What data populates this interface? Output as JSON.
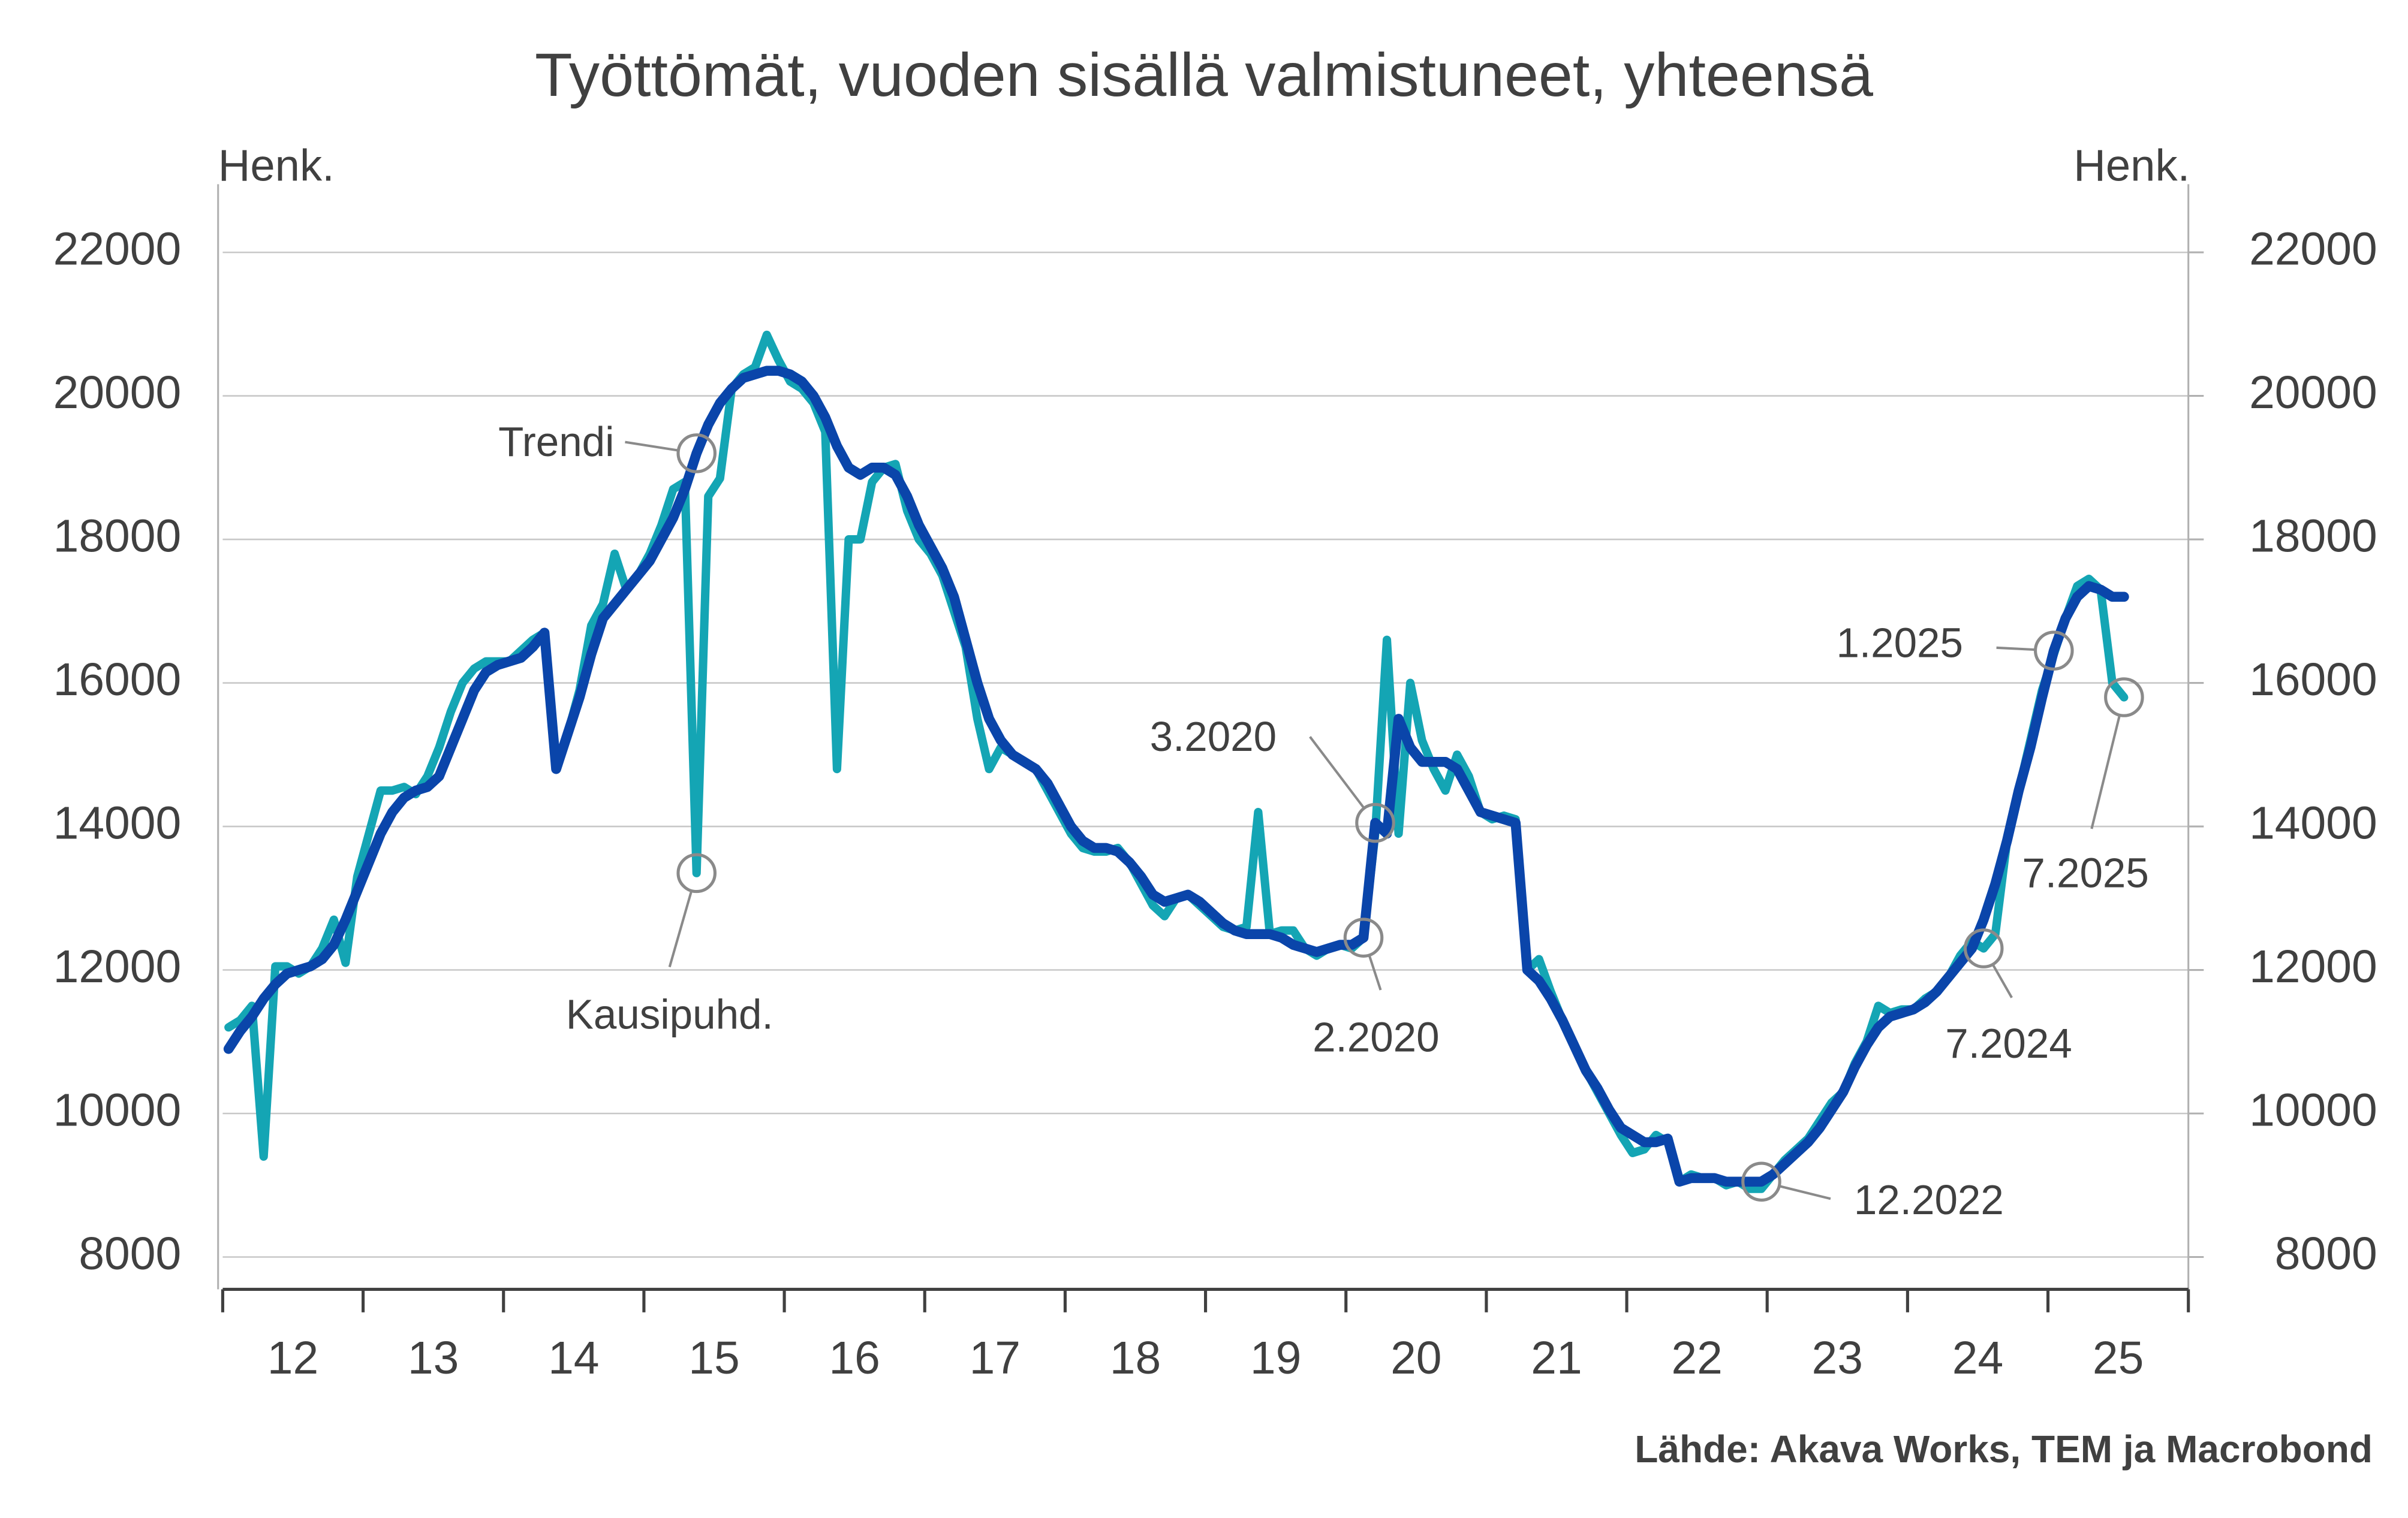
{
  "chart_data": {
    "type": "line",
    "title": "Työttömät, vuoden sisällä valmistuneet, yhteensä",
    "ylabel": "Henk.",
    "y2label": "Henk.",
    "source": "Lähde: Akava Works, TEM ja Macrobond",
    "ylim": [
      7550,
      22950
    ],
    "yticks": [
      8000,
      10000,
      12000,
      14000,
      16000,
      18000,
      20000,
      22000
    ],
    "y2lim": [
      7550,
      22950
    ],
    "y2ticks": [
      8000,
      10000,
      12000,
      14000,
      16000,
      18000,
      20000,
      22000
    ],
    "grid": true,
    "xtick_labels": [
      "12",
      "13",
      "14",
      "15",
      "16",
      "17",
      "18",
      "19",
      "20",
      "21",
      "22",
      "23",
      "24",
      "25"
    ],
    "x": [
      "1.2012",
      "2.2012",
      "3.2012",
      "4.2012",
      "5.2012",
      "6.2012",
      "7.2012",
      "8.2012",
      "9.2012",
      "10.2012",
      "11.2012",
      "12.2012",
      "1.2013",
      "2.2013",
      "3.2013",
      "4.2013",
      "5.2013",
      "6.2013",
      "7.2013",
      "8.2013",
      "9.2013",
      "10.2013",
      "11.2013",
      "12.2013",
      "1.2014",
      "2.2014",
      "3.2014",
      "4.2014",
      "5.2014",
      "6.2014",
      "7.2014",
      "8.2014",
      "9.2014",
      "10.2014",
      "11.2014",
      "12.2014",
      "1.2015",
      "2.2015",
      "3.2015",
      "4.2015",
      "5.2015",
      "6.2015",
      "7.2015",
      "8.2015",
      "9.2015",
      "10.2015",
      "11.2015",
      "12.2015",
      "1.2016",
      "2.2016",
      "3.2016",
      "4.2016",
      "5.2016",
      "6.2016",
      "7.2016",
      "8.2016",
      "9.2016",
      "10.2016",
      "11.2016",
      "12.2016",
      "1.2017",
      "2.2017",
      "3.2017",
      "4.2017",
      "5.2017",
      "6.2017",
      "7.2017",
      "8.2017",
      "9.2017",
      "10.2017",
      "11.2017",
      "12.2017",
      "1.2018",
      "2.2018",
      "3.2018",
      "4.2018",
      "5.2018",
      "6.2018",
      "7.2018",
      "8.2018",
      "9.2018",
      "10.2018",
      "11.2018",
      "12.2018",
      "1.2019",
      "2.2019",
      "3.2019",
      "4.2019",
      "5.2019",
      "6.2019",
      "7.2019",
      "8.2019",
      "9.2019",
      "10.2019",
      "11.2019",
      "12.2019",
      "1.2020",
      "2.2020",
      "3.2020",
      "4.2020",
      "5.2020",
      "6.2020",
      "7.2020",
      "8.2020",
      "9.2020",
      "10.2020",
      "11.2020",
      "12.2020",
      "1.2021",
      "2.2021",
      "3.2021",
      "4.2021",
      "5.2021",
      "6.2021",
      "7.2021",
      "8.2021",
      "9.2021",
      "10.2021",
      "11.2021",
      "12.2021",
      "1.2022",
      "2.2022",
      "3.2022",
      "4.2022",
      "5.2022",
      "6.2022",
      "7.2022",
      "8.2022",
      "9.2022",
      "10.2022",
      "11.2022",
      "12.2022",
      "1.2023",
      "2.2023",
      "3.2023",
      "4.2023",
      "5.2023",
      "6.2023",
      "7.2023",
      "8.2023",
      "9.2023",
      "10.2023",
      "11.2023",
      "12.2023",
      "1.2024",
      "2.2024",
      "3.2024",
      "4.2024",
      "5.2024",
      "6.2024",
      "7.2024",
      "8.2024",
      "9.2024",
      "10.2024",
      "11.2024",
      "12.2024",
      "1.2025",
      "2.2025",
      "3.2025",
      "4.2025",
      "5.2025",
      "6.2025",
      "7.2025"
    ],
    "series": [
      {
        "name": "Kausipuhd.",
        "color": "#14a5b4",
        "values": [
          11200,
          11300,
          11500,
          9400,
          12050,
          12050,
          11950,
          12050,
          12300,
          12700,
          12100,
          13300,
          13900,
          14500,
          14500,
          14550,
          14450,
          14700,
          15100,
          15600,
          16000,
          16200,
          16300,
          16300,
          16300,
          16450,
          16600,
          16700,
          14800,
          15300,
          15900,
          16800,
          17100,
          17800,
          17300,
          17500,
          17800,
          18200,
          18700,
          18800,
          13350,
          18600,
          18850,
          20100,
          20300,
          20400,
          20850,
          20500,
          20200,
          20100,
          19900,
          19500,
          14800,
          18000,
          18000,
          18800,
          19000,
          19050,
          18400,
          18000,
          17800,
          17500,
          17000,
          16500,
          15500,
          14800,
          15100,
          15000,
          14900,
          14800,
          14500,
          14200,
          13900,
          13700,
          13650,
          13650,
          13700,
          13500,
          13200,
          12900,
          12750,
          13000,
          13050,
          12900,
          12750,
          12600,
          12550,
          12600,
          14200,
          12500,
          12550,
          12550,
          12300,
          12200,
          12300,
          12350,
          12300,
          12450,
          13900,
          16600,
          13900,
          16000,
          15200,
          14800,
          14500,
          15000,
          14700,
          14200,
          14100,
          14150,
          14100,
          12000,
          12150,
          11700,
          11300,
          10950,
          10600,
          10300,
          10000,
          9700,
          9450,
          9500,
          9700,
          9600,
          9050,
          9150,
          9100,
          9100,
          9000,
          9050,
          8950,
          8950,
          9150,
          9350,
          9500,
          9650,
          9900,
          10150,
          10300,
          10700,
          11000,
          11500,
          11400,
          11450,
          11450,
          11600,
          11700,
          11900,
          12200,
          12400,
          12300,
          12500,
          13800,
          14500,
          15200,
          15900,
          16400,
          16900,
          17350,
          17450,
          17300,
          16000,
          15800
        ]
      },
      {
        "name": "Trendi",
        "color": "#0a45aa",
        "values": [
          10900,
          11150,
          11350,
          11600,
          11800,
          11950,
          12000,
          12050,
          12150,
          12350,
          12700,
          13100,
          13500,
          13900,
          14200,
          14400,
          14500,
          14550,
          14700,
          15100,
          15500,
          15900,
          16150,
          16250,
          16300,
          16350,
          16500,
          16700,
          14800,
          15300,
          15800,
          16400,
          16900,
          17100,
          17300,
          17500,
          17700,
          18000,
          18300,
          18700,
          19200,
          19600,
          19900,
          20100,
          20250,
          20300,
          20350,
          20350,
          20300,
          20200,
          20000,
          19700,
          19300,
          19000,
          18900,
          19000,
          19000,
          18900,
          18600,
          18200,
          17900,
          17600,
          17200,
          16600,
          16000,
          15500,
          15200,
          15000,
          14900,
          14800,
          14600,
          14300,
          14000,
          13800,
          13700,
          13700,
          13650,
          13500,
          13300,
          13050,
          12950,
          13000,
          13050,
          12950,
          12800,
          12650,
          12550,
          12500,
          12500,
          12500,
          12450,
          12350,
          12300,
          12250,
          12300,
          12350,
          12350,
          12450,
          14050,
          13900,
          15500,
          15100,
          14900,
          14900,
          14900,
          14800,
          14500,
          14200,
          14150,
          14100,
          14050,
          12000,
          11850,
          11600,
          11300,
          10950,
          10600,
          10350,
          10050,
          9800,
          9700,
          9600,
          9600,
          9650,
          9050,
          9100,
          9100,
          9100,
          9050,
          9050,
          9050,
          9050,
          9150,
          9300,
          9450,
          9600,
          9800,
          10050,
          10300,
          10650,
          10950,
          11200,
          11350,
          11400,
          11450,
          11550,
          11700,
          11900,
          12100,
          12300,
          12700,
          13200,
          13800,
          14500,
          15100,
          15800,
          16450,
          16900,
          17200,
          17350,
          17300,
          17200,
          17200
        ]
      }
    ],
    "annotations": [
      {
        "text": "3.2020",
        "series": "Trendi"
      },
      {
        "text": "2.2020",
        "series": "Trendi"
      },
      {
        "text": "1.2025",
        "series": "Trendi"
      },
      {
        "text": "7.2025",
        "series": "Kausipuhd."
      },
      {
        "text": "7.2024",
        "series": "Kausipuhd."
      },
      {
        "text": "12.2022",
        "series": "Trendi"
      }
    ]
  }
}
